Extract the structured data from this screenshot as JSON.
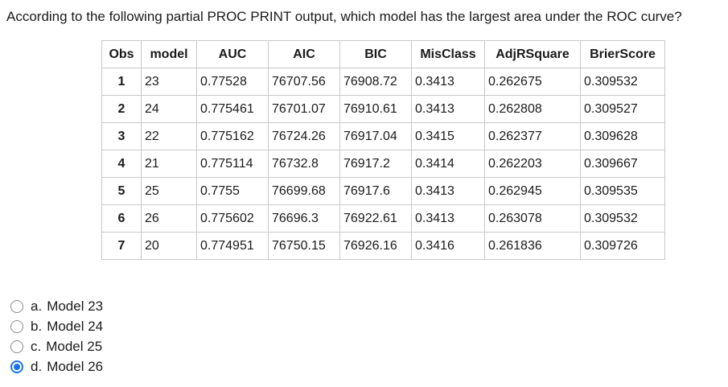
{
  "question": "According to the following partial PROC PRINT output, which model has the largest area under the ROC curve?",
  "table": {
    "headers": [
      "Obs",
      "model",
      "AUC",
      "AIC",
      "BIC",
      "MisClass",
      "AdjRSquare",
      "BrierScore"
    ],
    "rows": [
      [
        "1",
        "23",
        "0.77528",
        "76707.56",
        "76908.72",
        "0.3413",
        "0.262675",
        "0.309532"
      ],
      [
        "2",
        "24",
        "0.775461",
        "76701.07",
        "76910.61",
        "0.3413",
        "0.262808",
        "0.309527"
      ],
      [
        "3",
        "22",
        "0.775162",
        "76724.26",
        "76917.04",
        "0.3415",
        "0.262377",
        "0.309628"
      ],
      [
        "4",
        "21",
        "0.775114",
        "76732.8",
        "76917.2",
        "0.3414",
        "0.262203",
        "0.309667"
      ],
      [
        "5",
        "25",
        "0.7755",
        "76699.68",
        "76917.6",
        "0.3413",
        "0.262945",
        "0.309535"
      ],
      [
        "6",
        "26",
        "0.775602",
        "76696.3",
        "76922.61",
        "0.3413",
        "0.263078",
        "0.309532"
      ],
      [
        "7",
        "20",
        "0.774951",
        "76750.15",
        "76926.16",
        "0.3416",
        "0.261836",
        "0.309726"
      ]
    ]
  },
  "options": [
    {
      "letter": "a.",
      "text": "Model 23",
      "selected": false
    },
    {
      "letter": "b.",
      "text": "Model 24",
      "selected": false
    },
    {
      "letter": "c.",
      "text": "Model 25",
      "selected": false
    },
    {
      "letter": "d.",
      "text": "Model 26",
      "selected": true
    }
  ],
  "colors": {
    "accent": "#1a73e8",
    "border": "#c8c8c8"
  }
}
